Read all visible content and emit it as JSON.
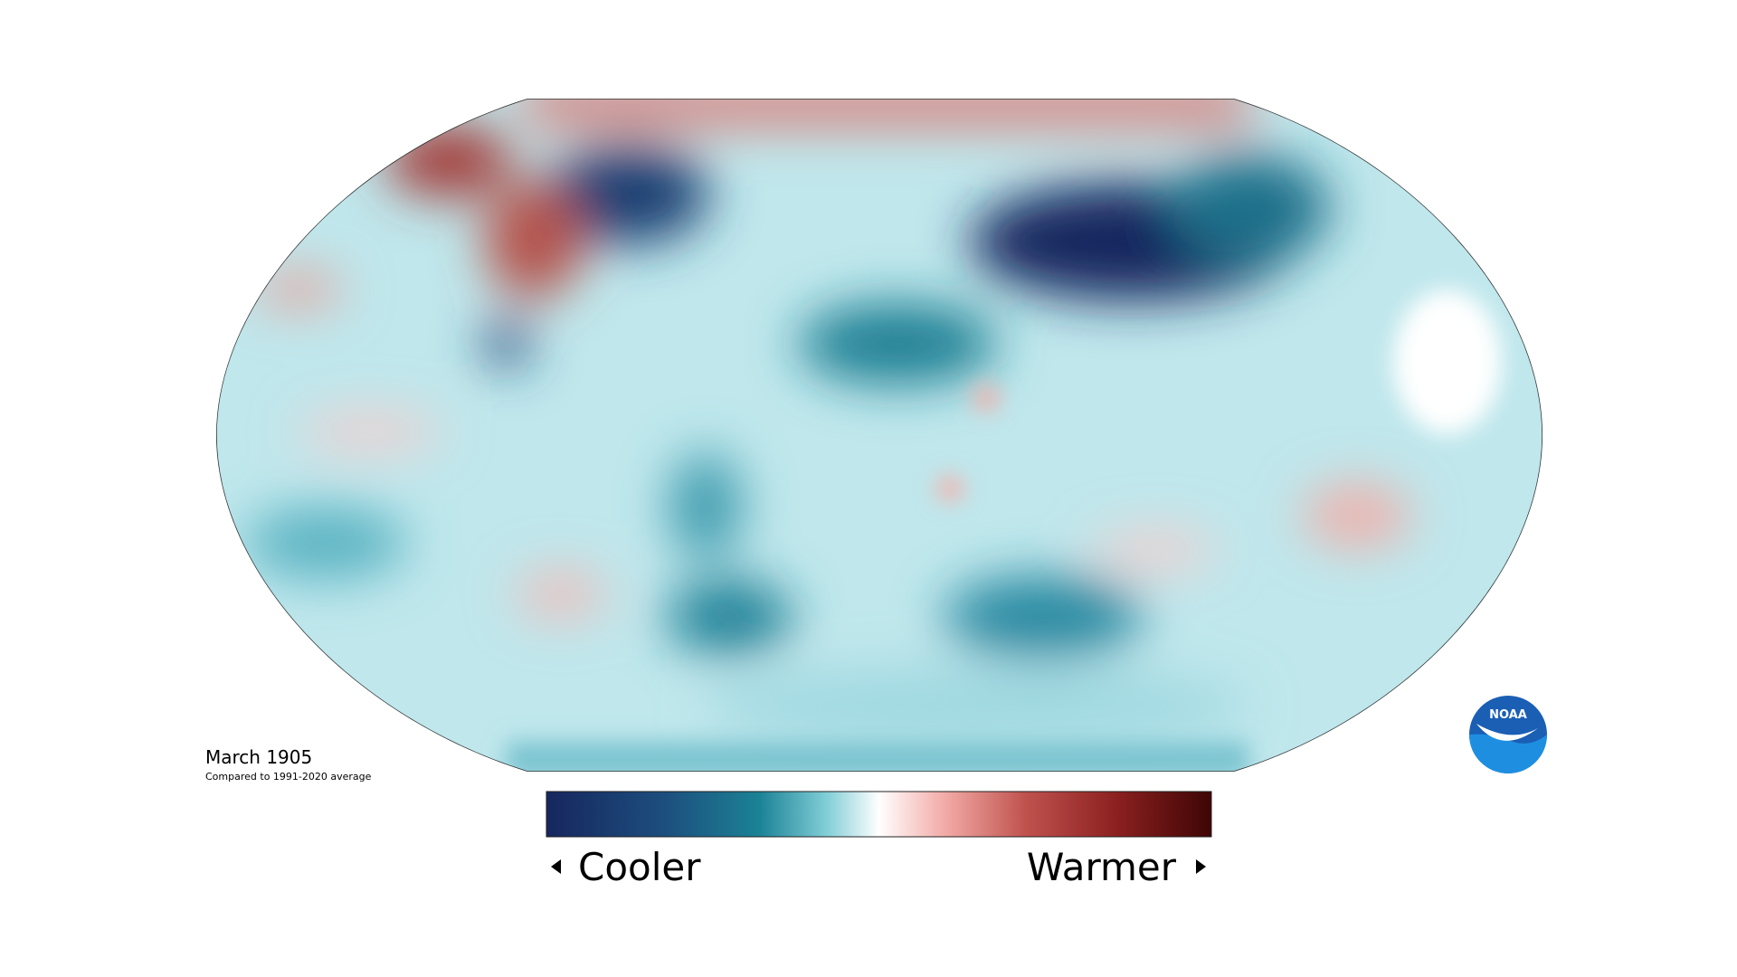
{
  "map": {
    "title": "March 1905",
    "subtitle": "Compared to 1991-2020 average"
  },
  "legend": {
    "low_label": "Cooler",
    "high_label": "Warmer"
  },
  "logo": {
    "text": "NOAA"
  }
}
